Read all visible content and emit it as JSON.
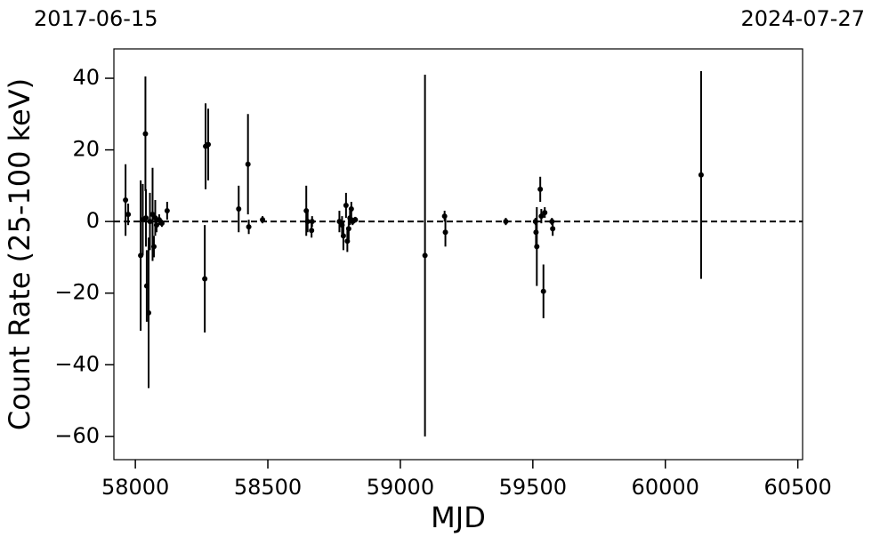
{
  "chart_data": {
    "type": "errorbar",
    "xlabel": "MJD",
    "ylabel": "Count Rate (25-100 keV)",
    "xlim": [
      57919,
      60518
    ],
    "ylim": [
      -66.5,
      48.2
    ],
    "xticks": [
      58000,
      58500,
      59000,
      59500,
      60000,
      60500
    ],
    "yticks": [
      {
        "value": -60,
        "label": "−60"
      },
      {
        "value": -40,
        "label": "−40"
      },
      {
        "value": -20,
        "label": "−20"
      },
      0,
      20,
      40
    ],
    "x2ticks": [
      {
        "value": 57919,
        "label": "2017-06-15"
      },
      {
        "value": 60518,
        "label": "2024-07-27"
      }
    ],
    "hline": 0,
    "color": "#000000",
    "x": [
      57963,
      57973,
      58020,
      58028,
      58038,
      58040,
      58043,
      58050,
      58055,
      58065,
      58070,
      58075,
      58080,
      58090,
      58100,
      58120,
      58262,
      58265,
      58275,
      58390,
      58425,
      58428,
      58480,
      58645,
      58650,
      58665,
      58667,
      58770,
      58780,
      58785,
      58795,
      58800,
      58805,
      58810,
      58815,
      58820,
      58830,
      59093,
      59167,
      59170,
      59398,
      59510,
      59512,
      59515,
      59528,
      59532,
      59540,
      59545,
      59572,
      59575,
      60135
    ],
    "values": [
      6,
      2,
      -9.5,
      0.5,
      24.5,
      1,
      -18,
      -25.5,
      0,
      2,
      -7,
      1,
      -1,
      0.5,
      -0.5,
      3,
      -16,
      21,
      21.5,
      3.5,
      16,
      -1.5,
      0.5,
      3,
      0,
      -2.5,
      0,
      0,
      -1,
      -4,
      4.5,
      -5.5,
      -2,
      1,
      3.5,
      0,
      0.5,
      -9.5,
      1.5,
      -3,
      0,
      0,
      -3,
      -7,
      9,
      1.5,
      -19.5,
      2.5,
      0,
      -2,
      13
    ],
    "errors": [
      10,
      3,
      21,
      10,
      16,
      8,
      10,
      21,
      8,
      13,
      3,
      5,
      2,
      1.5,
      1,
      2.5,
      15,
      12,
      10,
      6.5,
      14,
      2,
      1,
      7,
      3,
      2,
      1.5,
      3,
      2.5,
      4,
      3.5,
      3,
      3,
      2,
      2,
      1,
      0.8,
      50.5,
      1.5,
      4,
      1,
      1,
      4,
      11,
      3.5,
      2,
      7.5,
      1.5,
      1,
      2,
      29
    ]
  }
}
